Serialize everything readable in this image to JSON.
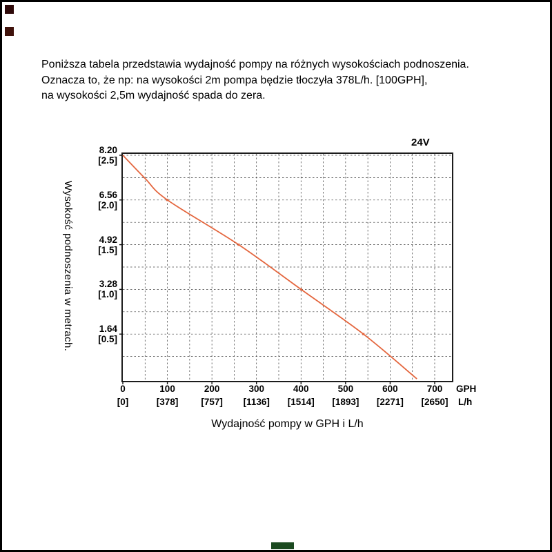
{
  "description": {
    "lines": [
      "Poniższa tabela przedstawia wydajność pompy na różnych wysokościach podnoszenia.",
      "Oznacza to, że np: na wysokości 2m pompa będzie tłoczyła 378L/h. [100GPH],",
      "na wysokości 2,5m wydajność spada do zera."
    ]
  },
  "chart": {
    "voltage_label": "24V",
    "x_axis_title": "Wydajność pompy w GPH i L/h",
    "y_axis_title": "Wysokość podnoszenia w metrach.",
    "x_unit_primary": "GPH",
    "x_unit_secondary": "L/h",
    "y_ticks": [
      {
        "ft": "8.20",
        "m": "[2.5]"
      },
      {
        "ft": "6.56",
        "m": "[2.0]"
      },
      {
        "ft": "4.92",
        "m": "[1.5]"
      },
      {
        "ft": "3.28",
        "m": "[1.0]"
      },
      {
        "ft": "1.64",
        "m": "[0.5]"
      }
    ],
    "x_ticks": [
      {
        "gph": "0",
        "lh": "[0]"
      },
      {
        "gph": "100",
        "lh": "[378]"
      },
      {
        "gph": "200",
        "lh": "[757]"
      },
      {
        "gph": "300",
        "lh": "[1136]"
      },
      {
        "gph": "400",
        "lh": "[1514]"
      },
      {
        "gph": "500",
        "lh": "[1893]"
      },
      {
        "gph": "600",
        "lh": "[2271]"
      },
      {
        "gph": "700",
        "lh": "[2650]"
      }
    ]
  },
  "chart_data": {
    "type": "line",
    "title": "24V",
    "xlabel": "Wydajność pompy w GPH i L/h",
    "ylabel": "Wysokość podnoszenia w metrach.",
    "x_axis_units": [
      "GPH",
      "L/h"
    ],
    "x_range_gph": [
      0,
      700
    ],
    "y_range_ft": [
      0,
      8.2
    ],
    "y_range_m": [
      0,
      2.5
    ],
    "grid": "dashed",
    "legend": "none",
    "line_color": "#e4663e",
    "series": [
      {
        "name": "24V",
        "x_gph": [
          0,
          50,
          100,
          260,
          400,
          540,
          660
        ],
        "x_lh": [
          0,
          189,
          378,
          984,
          1514,
          2044,
          2498
        ],
        "y_ft": [
          8.2,
          7.35,
          6.56,
          4.92,
          3.28,
          1.64,
          0
        ],
        "y_m": [
          2.5,
          2.24,
          2.0,
          1.5,
          1.0,
          0.5,
          0
        ],
        "marker_points_gph": [
          100,
          260,
          400,
          540
        ]
      }
    ]
  }
}
